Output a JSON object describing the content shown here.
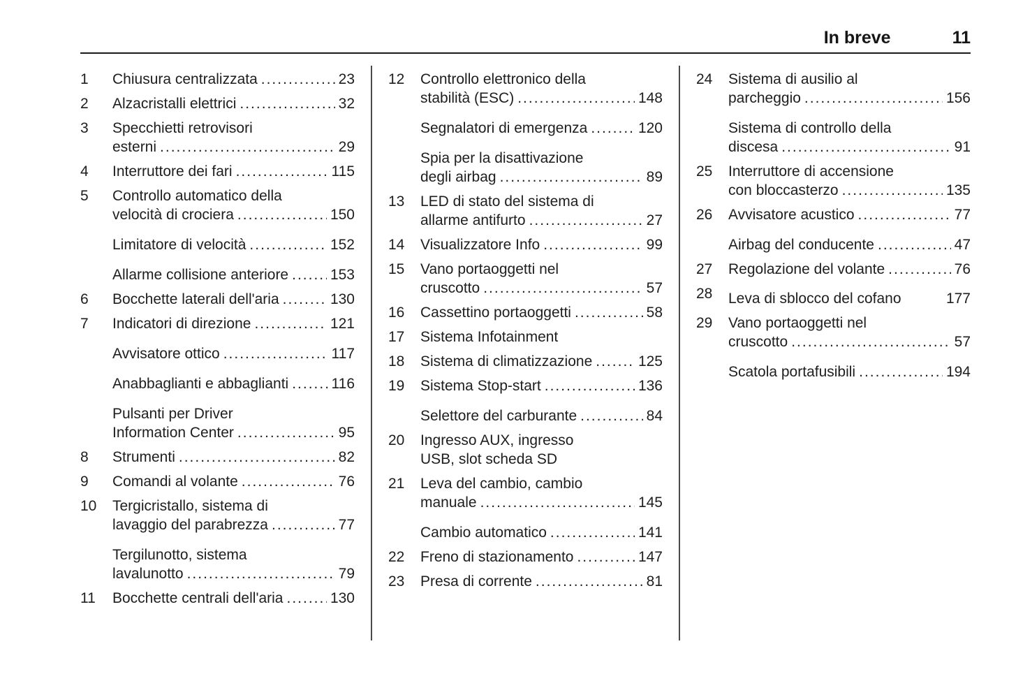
{
  "header": {
    "title": "In breve",
    "page_number": "11"
  },
  "colors": {
    "text": "#1e1e1e",
    "header_rule": "#1a1a1a",
    "column_divider": "#4a4a4a",
    "background": "#ffffff"
  },
  "toc": {
    "columns": [
      {
        "entries": [
          {
            "num": "1",
            "lines": [
              "Chiusura centralizzata"
            ],
            "page": "23"
          },
          {
            "num": "2",
            "lines": [
              "Alzacristalli elettrici"
            ],
            "page": "32"
          },
          {
            "num": "3",
            "lines": [
              "Specchietti retrovisori",
              "esterni"
            ],
            "page": "29"
          },
          {
            "num": "4",
            "lines": [
              "Interruttore dei fari"
            ],
            "page": "115"
          },
          {
            "num": "5",
            "lines": [
              "Controllo automatico della",
              "velocità di crociera"
            ],
            "page": "150"
          },
          {
            "num": "",
            "lines": [
              "Limitatore di velocità"
            ],
            "page": "152"
          },
          {
            "num": "",
            "lines": [
              "Allarme collisione anteriore"
            ],
            "page": "153"
          },
          {
            "num": "6",
            "lines": [
              "Bocchette laterali dell'aria"
            ],
            "page": "130"
          },
          {
            "num": "7",
            "lines": [
              "Indicatori di direzione"
            ],
            "page": "121"
          },
          {
            "num": "",
            "lines": [
              "Avvisatore ottico"
            ],
            "page": "117"
          },
          {
            "num": "",
            "lines": [
              "Anabbaglianti e abbaglianti"
            ],
            "page": "116"
          },
          {
            "num": "",
            "lines": [
              "Pulsanti per Driver",
              "Information Center"
            ],
            "page": "95"
          },
          {
            "num": "8",
            "lines": [
              "Strumenti"
            ],
            "page": "82"
          },
          {
            "num": "9",
            "lines": [
              "Comandi al volante"
            ],
            "page": "76"
          },
          {
            "num": "10",
            "lines": [
              "Tergicristallo, sistema di",
              "lavaggio del parabrezza"
            ],
            "page": "77"
          },
          {
            "num": "",
            "lines": [
              "Tergilunotto, sistema",
              "lavalunotto"
            ],
            "page": "79"
          },
          {
            "num": "11",
            "lines": [
              "Bocchette centrali dell'aria"
            ],
            "page": "130"
          }
        ]
      },
      {
        "entries": [
          {
            "num": "12",
            "lines": [
              "Controllo elettronico della",
              "stabilità (ESC)"
            ],
            "page": "148"
          },
          {
            "num": "",
            "lines": [
              "Segnalatori di emergenza"
            ],
            "page": "120"
          },
          {
            "num": "",
            "lines": [
              "Spia per la disattivazione",
              "degli airbag"
            ],
            "page": "89"
          },
          {
            "num": "13",
            "lines": [
              "LED di stato del sistema di",
              "allarme antifurto"
            ],
            "page": "27"
          },
          {
            "num": "14",
            "lines": [
              "Visualizzatore Info"
            ],
            "page": "99"
          },
          {
            "num": "15",
            "lines": [
              "Vano portaoggetti nel",
              "cruscotto"
            ],
            "page": "57"
          },
          {
            "num": "16",
            "lines": [
              "Cassettino portaoggetti"
            ],
            "page": "58"
          },
          {
            "num": "17",
            "lines": [
              "Sistema Infotainment"
            ],
            "page": null
          },
          {
            "num": "18",
            "lines": [
              "Sistema di climatizzazione"
            ],
            "page": "125"
          },
          {
            "num": "19",
            "lines": [
              "Sistema Stop-start"
            ],
            "page": "136"
          },
          {
            "num": "",
            "lines": [
              "Selettore del carburante"
            ],
            "page": "84"
          },
          {
            "num": "20",
            "lines": [
              "Ingresso AUX, ingresso",
              "USB, slot scheda SD"
            ],
            "page": null
          },
          {
            "num": "21",
            "lines": [
              "Leva del cambio, cambio",
              "manuale"
            ],
            "page": "145"
          },
          {
            "num": "",
            "lines": [
              "Cambio automatico"
            ],
            "page": "141"
          },
          {
            "num": "22",
            "lines": [
              "Freno di stazionamento"
            ],
            "page": "147"
          },
          {
            "num": "23",
            "lines": [
              "Presa di corrente"
            ],
            "page": "81"
          }
        ]
      },
      {
        "entries": [
          {
            "num": "24",
            "lines": [
              "Sistema di ausilio al",
              "parcheggio"
            ],
            "page": "156"
          },
          {
            "num": "",
            "lines": [
              "Sistema di controllo della",
              "discesa"
            ],
            "page": "91"
          },
          {
            "num": "25",
            "lines": [
              "Interruttore di accensione",
              "con bloccasterzo"
            ],
            "page": "135"
          },
          {
            "num": "26",
            "lines": [
              "Avvisatore acustico"
            ],
            "page": "77"
          },
          {
            "num": "",
            "lines": [
              "Airbag del conducente"
            ],
            "page": "47"
          },
          {
            "num": "27",
            "lines": [
              "Regolazione del volante"
            ],
            "page": "76"
          },
          {
            "num": "28",
            "lines": [
              "Leva di sblocco del cofano"
            ],
            "page": "177",
            "leader": "none"
          },
          {
            "num": "29",
            "lines": [
              "Vano portaoggetti nel",
              "cruscotto"
            ],
            "page": "57"
          },
          {
            "num": "",
            "lines": [
              "Scatola portafusibili"
            ],
            "page": "194"
          }
        ]
      }
    ]
  }
}
